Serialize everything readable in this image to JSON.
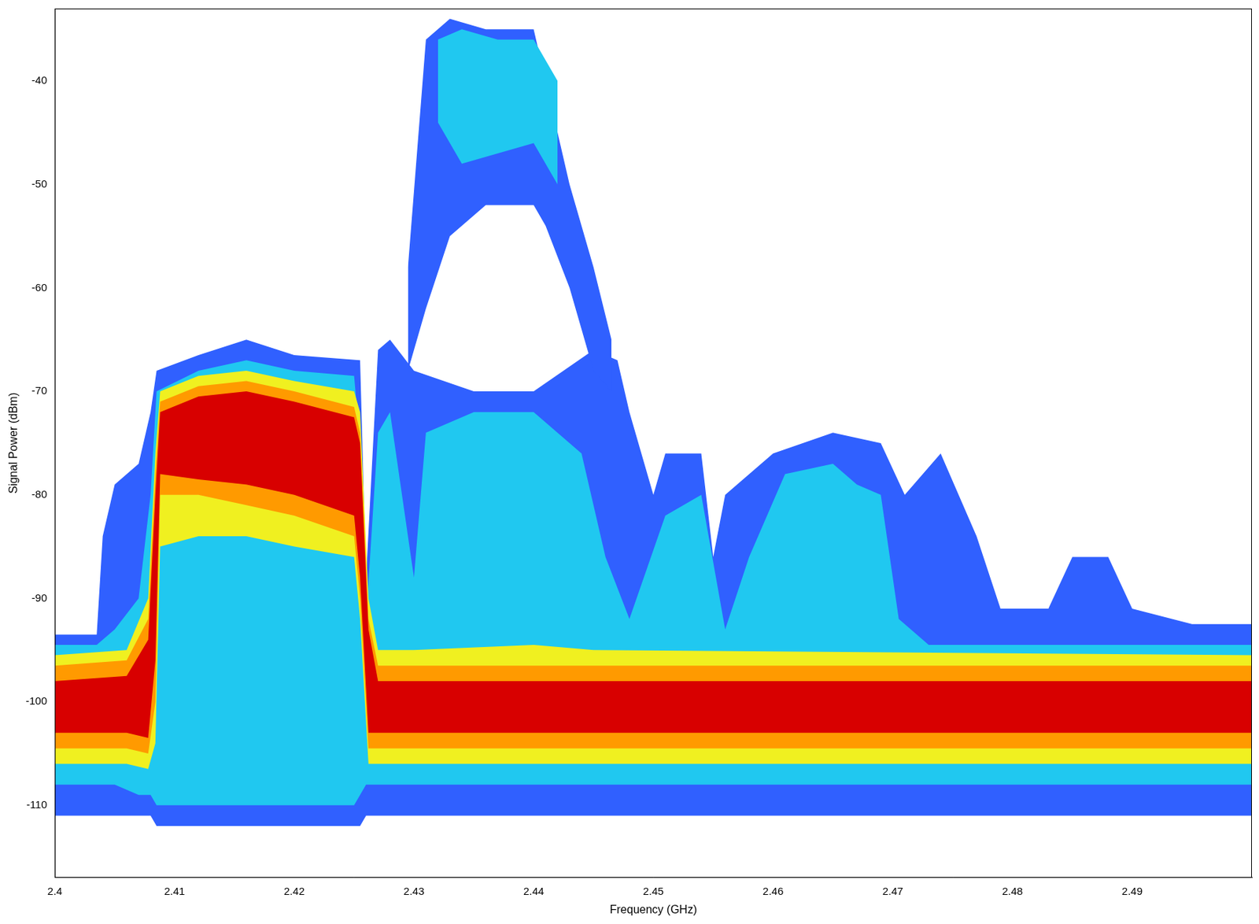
{
  "chart_data": {
    "type": "density",
    "x_label": "Frequency (GHz)",
    "y_label": "Signal Power (dBm)",
    "xlim": [
      2.4,
      2.5
    ],
    "xticks": [
      2.4,
      2.41,
      2.42,
      2.43,
      2.44,
      2.45,
      2.46,
      2.47,
      2.48,
      2.49
    ],
    "ylim": [
      -117,
      -33
    ],
    "yticks": [
      -110,
      -100,
      -90,
      -80,
      -70,
      -60,
      -50,
      -40
    ],
    "grid": false,
    "series": [
      {
        "color": "#3060ff",
        "x": [
          2.4,
          2.4035,
          2.404,
          2.405,
          2.407,
          2.408,
          2.4085,
          2.412,
          2.416,
          2.42,
          2.4255,
          2.426,
          2.427,
          2.428,
          2.43,
          2.435,
          2.44,
          2.445,
          2.447,
          2.448,
          2.45,
          2.451,
          2.454,
          2.455,
          2.456,
          2.46,
          2.465,
          2.469,
          2.471,
          2.474,
          2.477,
          2.479,
          2.483,
          2.485,
          2.488,
          2.49,
          2.495,
          2.5
        ],
        "upper": [
          -93.5,
          -93.5,
          -84,
          -79,
          -77,
          -72,
          -68,
          -66.5,
          -65,
          -66.5,
          -67,
          -88,
          -66,
          -65,
          -68,
          -70,
          -70,
          -66,
          -67,
          -72,
          -80,
          -76,
          -76,
          -86,
          -80,
          -76,
          -74,
          -75,
          -80,
          -76,
          -84,
          -91,
          -91,
          -86,
          -86,
          -91,
          -92.5,
          -92.5
        ],
        "lower": [
          -111,
          -111,
          -111,
          -111,
          -111,
          -111,
          -112,
          -112,
          -112,
          -112,
          -112,
          -111,
          -111,
          -111,
          -111,
          -111,
          -111,
          -111,
          -111,
          -111,
          -111,
          -111,
          -111,
          -111,
          -111,
          -111,
          -111,
          -111,
          -111,
          -111,
          -111,
          -111,
          -111,
          -111,
          -111,
          -111,
          -111,
          -111
        ]
      },
      {
        "color": "#3060ff",
        "x": [
          2.4295,
          2.431,
          2.433,
          2.436,
          2.44,
          2.441,
          2.443,
          2.445,
          2.4465
        ],
        "upper": [
          -58,
          -36,
          -34,
          -35,
          -35,
          -40,
          -50,
          -58,
          -65
        ],
        "lower": [
          -68,
          -62,
          -55,
          -52,
          -52,
          -54,
          -60,
          -68,
          -70
        ]
      },
      {
        "color": "#20c8f0",
        "x": [
          2.4,
          2.4035,
          2.405,
          2.407,
          2.408,
          2.4085,
          2.412,
          2.416,
          2.42,
          2.425,
          2.4255,
          2.426,
          2.427,
          2.428,
          2.43,
          2.431,
          2.435,
          2.44,
          2.444,
          2.446,
          2.448,
          2.451,
          2.454,
          2.456,
          2.458,
          2.461,
          2.465,
          2.467,
          2.469,
          2.4705,
          2.473,
          2.5
        ],
        "upper": [
          -94.5,
          -94.5,
          -93,
          -90,
          -80,
          -70,
          -68,
          -67,
          -68,
          -68.5,
          -75,
          -92,
          -74,
          -72,
          -88,
          -74,
          -72,
          -72,
          -76,
          -86,
          -92,
          -82,
          -80,
          -93,
          -86,
          -78,
          -77,
          -79,
          -80,
          -92,
          -94.5,
          -94.5
        ],
        "lower": [
          -108,
          -108,
          -108,
          -109,
          -109,
          -110,
          -110,
          -110,
          -110,
          -110,
          -109,
          -108,
          -108,
          -108,
          -108,
          -108,
          -108,
          -108,
          -108,
          -108,
          -108,
          -108,
          -108,
          -108,
          -108,
          -108,
          -108,
          -108,
          -108,
          -108,
          -108,
          -108
        ]
      },
      {
        "color": "#20c8f0",
        "x": [
          2.432,
          2.434,
          2.437,
          2.44,
          2.442
        ],
        "upper": [
          -36,
          -35,
          -36,
          -36,
          -40
        ],
        "lower": [
          -44,
          -48,
          -47,
          -46,
          -50
        ]
      },
      {
        "color": "#f0f020",
        "x": [
          2.4,
          2.406,
          2.4078,
          2.4084,
          2.4088,
          2.412,
          2.416,
          2.42,
          2.425,
          2.4255,
          2.4262,
          2.427,
          2.43,
          2.44,
          2.445,
          2.5
        ],
        "upper": [
          -95.5,
          -95,
          -90,
          -76,
          -70,
          -68.5,
          -68,
          -69,
          -70,
          -72,
          -90,
          -95,
          -95,
          -94.5,
          -95,
          -95.5
        ],
        "lower": [
          -106,
          -106,
          -106.5,
          -104,
          -85,
          -84,
          -84,
          -85,
          -86,
          -92,
          -106,
          -106,
          -106,
          -106,
          -106,
          -106
        ]
      },
      {
        "color": "#ff9a00",
        "x": [
          2.4,
          2.406,
          2.4078,
          2.4084,
          2.4088,
          2.412,
          2.416,
          2.42,
          2.425,
          2.4255,
          2.4262,
          2.427,
          2.5
        ],
        "upper": [
          -96.5,
          -96,
          -92,
          -78,
          -71,
          -69.5,
          -69,
          -70,
          -71.5,
          -74,
          -92,
          -96.5,
          -96.5
        ],
        "lower": [
          -104.5,
          -104.5,
          -105,
          -100,
          -80,
          -80,
          -81,
          -82,
          -84,
          -90,
          -104.5,
          -104.5,
          -104.5
        ]
      },
      {
        "color": "#d80000",
        "x": [
          2.4,
          2.406,
          2.4078,
          2.4084,
          2.4088,
          2.412,
          2.416,
          2.42,
          2.425,
          2.4255,
          2.4262,
          2.427,
          2.5
        ],
        "upper": [
          -98,
          -97.5,
          -94,
          -80,
          -72,
          -70.5,
          -70,
          -71,
          -72.5,
          -75,
          -93,
          -98,
          -98
        ],
        "lower": [
          -103,
          -103,
          -103.5,
          -96,
          -78,
          -78.5,
          -79,
          -80,
          -82,
          -88,
          -103,
          -103,
          -103
        ]
      }
    ]
  }
}
